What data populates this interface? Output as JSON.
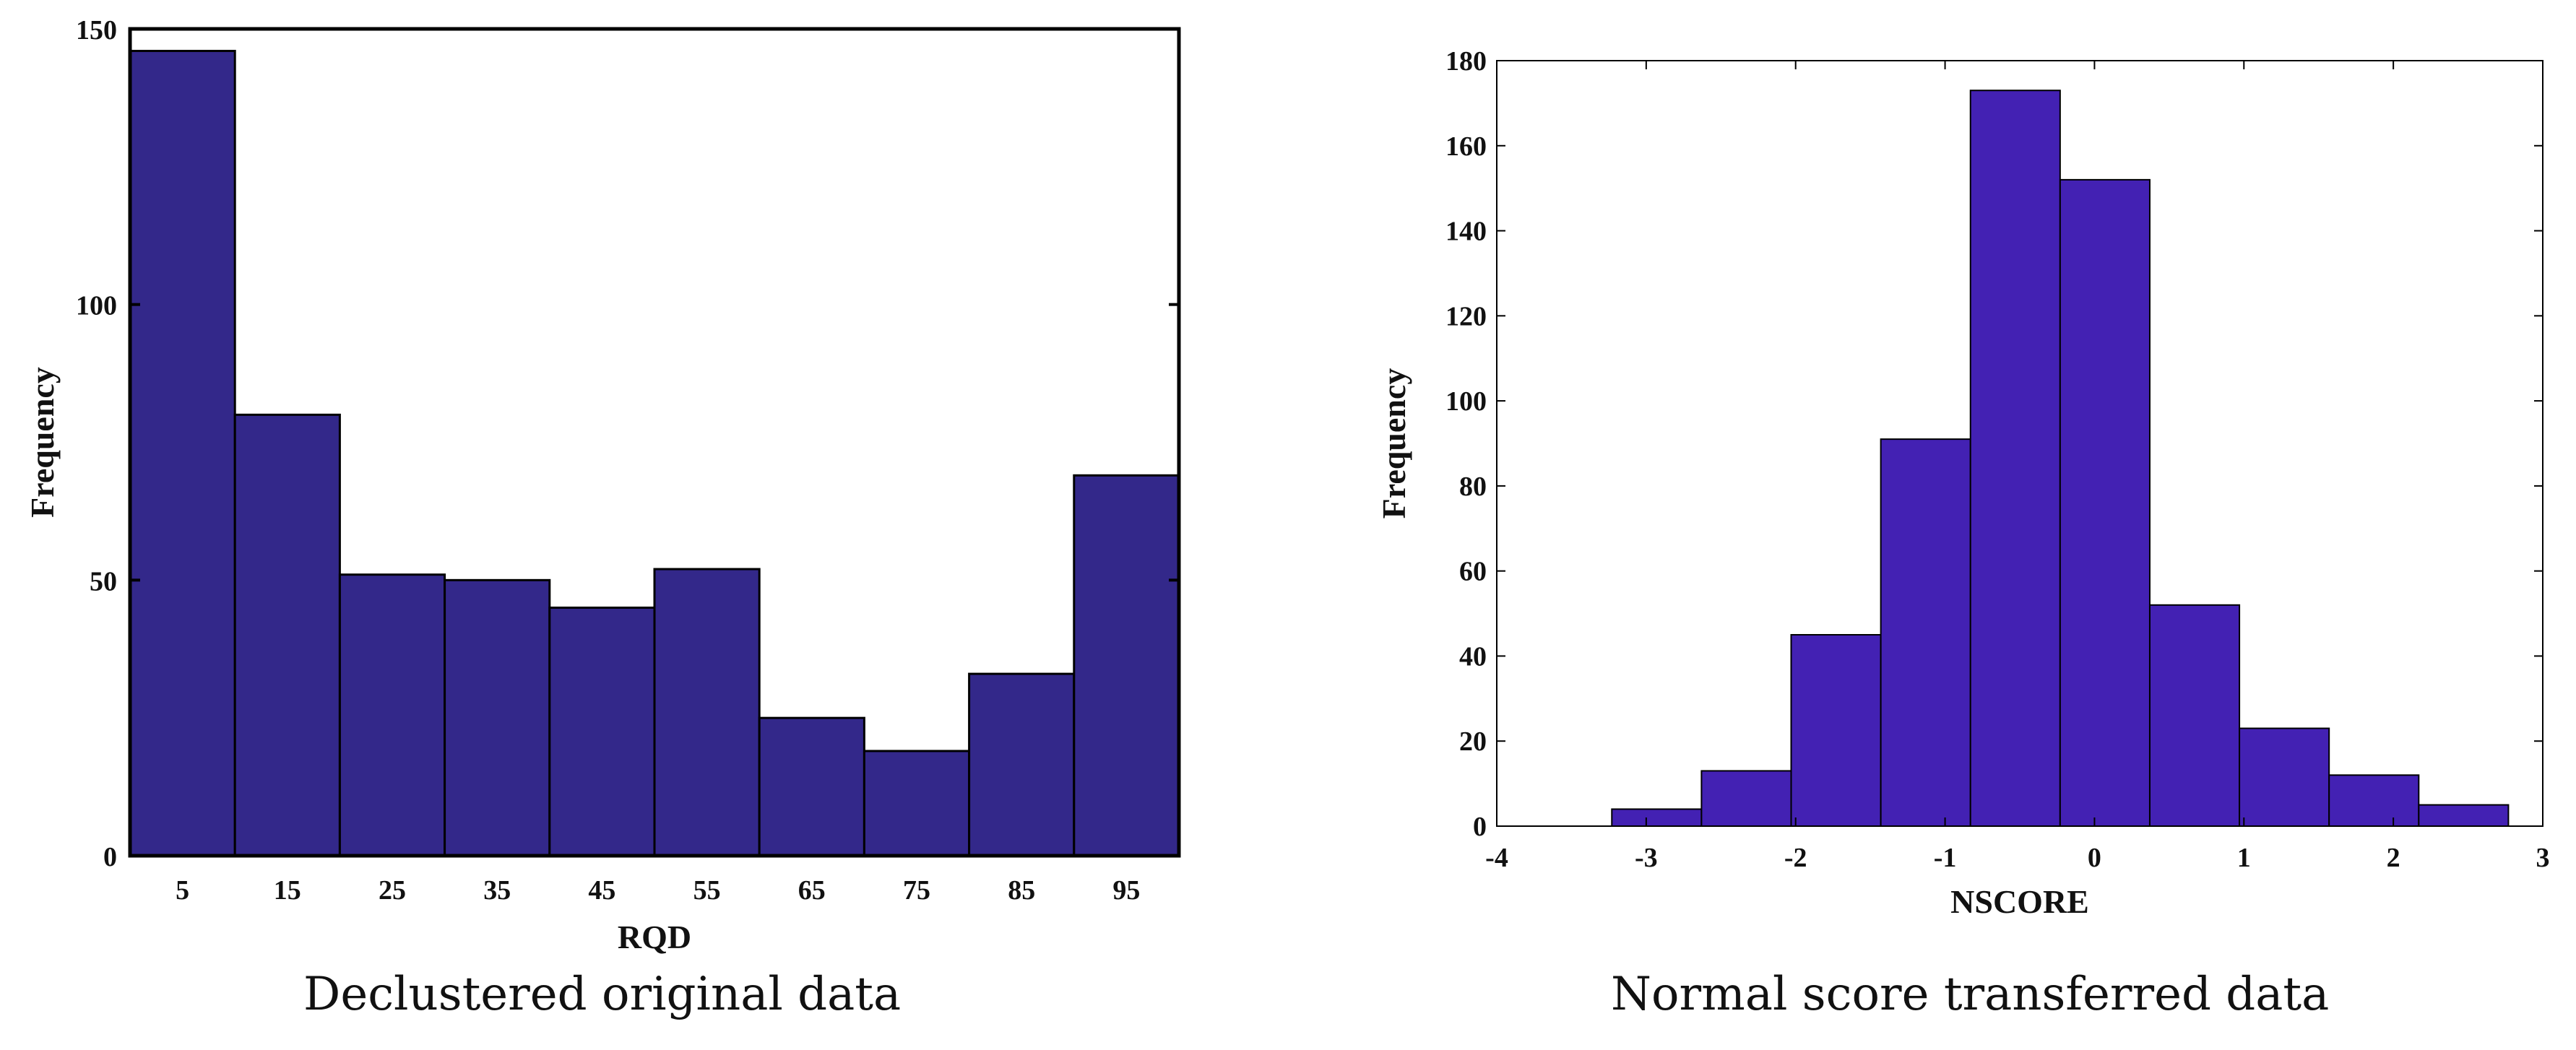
{
  "chart_data": [
    {
      "type": "bar",
      "caption": "Declustered original data",
      "xlabel": "RQD",
      "ylabel": "Frequency",
      "categories": [
        "5",
        "15",
        "25",
        "35",
        "45",
        "55",
        "65",
        "75",
        "85",
        "95"
      ],
      "values": [
        146,
        80,
        51,
        50,
        45,
        52,
        25,
        19,
        33,
        69
      ],
      "ylim": [
        0,
        150
      ],
      "yticks": [
        "0",
        "50",
        "100",
        "150"
      ],
      "bar_color": "#33288a"
    },
    {
      "type": "bar",
      "caption": "Normal score transferred data",
      "xlabel": "NSCORE",
      "ylabel": "Frequency",
      "bins": [
        {
          "x0": -3.23,
          "x1": -2.63,
          "value": 4
        },
        {
          "x0": -2.63,
          "x1": -2.03,
          "value": 13
        },
        {
          "x0": -2.03,
          "x1": -1.43,
          "value": 45
        },
        {
          "x0": -1.43,
          "x1": -0.83,
          "value": 91
        },
        {
          "x0": -0.83,
          "x1": -0.23,
          "value": 173
        },
        {
          "x0": -0.23,
          "x1": 0.37,
          "value": 152
        },
        {
          "x0": 0.37,
          "x1": 0.97,
          "value": 52
        },
        {
          "x0": 0.97,
          "x1": 1.57,
          "value": 23
        },
        {
          "x0": 1.57,
          "x1": 2.17,
          "value": 12
        },
        {
          "x0": 2.17,
          "x1": 2.77,
          "value": 5
        }
      ],
      "xlim": [
        -4,
        3
      ],
      "ylim": [
        0,
        180
      ],
      "xticks": [
        "-4",
        "-3",
        "-2",
        "-1",
        "0",
        "1",
        "2",
        "3"
      ],
      "yticks": [
        "0",
        "20",
        "40",
        "60",
        "80",
        "100",
        "120",
        "140",
        "160",
        "180"
      ],
      "bar_color": "#4321b3"
    }
  ]
}
